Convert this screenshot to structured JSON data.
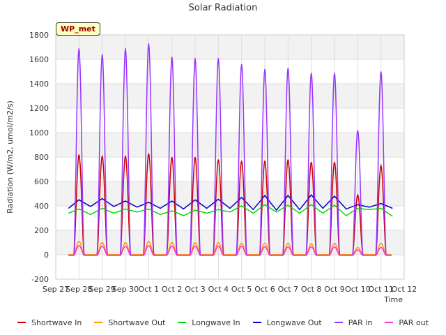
{
  "site_label": "WP_met",
  "chart_data": {
    "type": "line",
    "title": "Solar Radiation",
    "xlabel": "Time",
    "ylabel": "Radiation (W/m2, umol/m2/s)",
    "ylim": [
      -200,
      1800
    ],
    "yticks": [
      -200,
      0,
      200,
      400,
      600,
      800,
      1000,
      1200,
      1400,
      1600,
      1800
    ],
    "xlim": [
      0,
      15
    ],
    "x_tick_labels": [
      "Sep 27",
      "Sep 28",
      "Sep 29",
      "Sep 30",
      "Oct 1",
      "Oct 2",
      "Oct 3",
      "Oct 4",
      "Oct 5",
      "Oct 6",
      "Oct 7",
      "Oct 8",
      "Oct 9",
      "Oct 10",
      "Oct 11",
      "Oct 12"
    ],
    "x_unit": "days since Sep 27",
    "grid": true,
    "legend_position": "bottom",
    "series": [
      {
        "name": "Shortwave In",
        "color": "#cc0000",
        "daily_peaks": [
          {
            "day": 1,
            "peak": 820
          },
          {
            "day": 2,
            "peak": 810
          },
          {
            "day": 3,
            "peak": 810
          },
          {
            "day": 4,
            "peak": 830
          },
          {
            "day": 5,
            "peak": 800
          },
          {
            "day": 6,
            "peak": 800
          },
          {
            "day": 7,
            "peak": 780
          },
          {
            "day": 8,
            "peak": 770
          },
          {
            "day": 9,
            "peak": 770
          },
          {
            "day": 10,
            "peak": 780
          },
          {
            "day": 11,
            "peak": 760
          },
          {
            "day": 12,
            "peak": 760
          },
          {
            "day": 13,
            "peak": 490
          },
          {
            "day": 14,
            "peak": 730
          }
        ],
        "night_value": 0
      },
      {
        "name": "Shortwave Out",
        "color": "#ff9900",
        "daily_peaks": [
          {
            "day": 1,
            "peak": 110
          },
          {
            "day": 2,
            "peak": 100
          },
          {
            "day": 3,
            "peak": 100
          },
          {
            "day": 4,
            "peak": 110
          },
          {
            "day": 5,
            "peak": 100
          },
          {
            "day": 6,
            "peak": 100
          },
          {
            "day": 7,
            "peak": 100
          },
          {
            "day": 8,
            "peak": 95
          },
          {
            "day": 9,
            "peak": 95
          },
          {
            "day": 10,
            "peak": 95
          },
          {
            "day": 11,
            "peak": 90
          },
          {
            "day": 12,
            "peak": 95
          },
          {
            "day": 13,
            "peak": 60
          },
          {
            "day": 14,
            "peak": 95
          }
        ],
        "night_value": 0
      },
      {
        "name": "Longwave In",
        "color": "#00dd00",
        "x": [
          0.55,
          1.0,
          1.5,
          2.0,
          2.5,
          3.0,
          3.5,
          4.0,
          4.5,
          5.0,
          5.5,
          6.0,
          6.5,
          7.0,
          7.5,
          8.0,
          8.5,
          9.0,
          9.5,
          10.0,
          10.5,
          11.0,
          11.5,
          12.0,
          12.5,
          13.0,
          13.5,
          14.0,
          14.5
        ],
        "y": [
          340,
          375,
          330,
          380,
          340,
          375,
          350,
          375,
          330,
          360,
          320,
          365,
          340,
          370,
          350,
          400,
          340,
          410,
          350,
          405,
          340,
          410,
          340,
          405,
          320,
          380,
          370,
          380,
          315
        ]
      },
      {
        "name": "Longwave Out",
        "color": "#0000cc",
        "x": [
          0.55,
          1.0,
          1.5,
          2.0,
          2.5,
          3.0,
          3.5,
          4.0,
          4.5,
          5.0,
          5.5,
          6.0,
          6.5,
          7.0,
          7.5,
          8.0,
          8.5,
          9.0,
          9.5,
          10.0,
          10.5,
          11.0,
          11.5,
          12.0,
          12.5,
          13.0,
          13.5,
          14.0,
          14.5
        ],
        "y": [
          380,
          450,
          395,
          460,
          395,
          440,
          390,
          430,
          380,
          440,
          375,
          450,
          380,
          455,
          380,
          470,
          370,
          485,
          365,
          485,
          370,
          490,
          380,
          480,
          375,
          410,
          390,
          420,
          380
        ]
      },
      {
        "name": "PAR in",
        "color": "#9933ff",
        "daily_peaks": [
          {
            "day": 1,
            "peak": 1690
          },
          {
            "day": 2,
            "peak": 1640
          },
          {
            "day": 3,
            "peak": 1690
          },
          {
            "day": 4,
            "peak": 1730
          },
          {
            "day": 5,
            "peak": 1620
          },
          {
            "day": 6,
            "peak": 1610
          },
          {
            "day": 7,
            "peak": 1610
          },
          {
            "day": 8,
            "peak": 1560
          },
          {
            "day": 9,
            "peak": 1520
          },
          {
            "day": 10,
            "peak": 1530
          },
          {
            "day": 11,
            "peak": 1490
          },
          {
            "day": 12,
            "peak": 1490
          },
          {
            "day": 13,
            "peak": 1020
          },
          {
            "day": 14,
            "peak": 1500
          }
        ],
        "night_value": -5
      },
      {
        "name": "PAR out",
        "color": "#ff33cc",
        "daily_peaks": [
          {
            "day": 1,
            "peak": 75
          },
          {
            "day": 2,
            "peak": 70
          },
          {
            "day": 3,
            "peak": 70
          },
          {
            "day": 4,
            "peak": 75
          },
          {
            "day": 5,
            "peak": 70
          },
          {
            "day": 6,
            "peak": 70
          },
          {
            "day": 7,
            "peak": 70
          },
          {
            "day": 8,
            "peak": 70
          },
          {
            "day": 9,
            "peak": 65
          },
          {
            "day": 10,
            "peak": 65
          },
          {
            "day": 11,
            "peak": 65
          },
          {
            "day": 12,
            "peak": 65
          },
          {
            "day": 13,
            "peak": 40
          },
          {
            "day": 14,
            "peak": 60
          }
        ],
        "night_value": -5
      }
    ]
  }
}
